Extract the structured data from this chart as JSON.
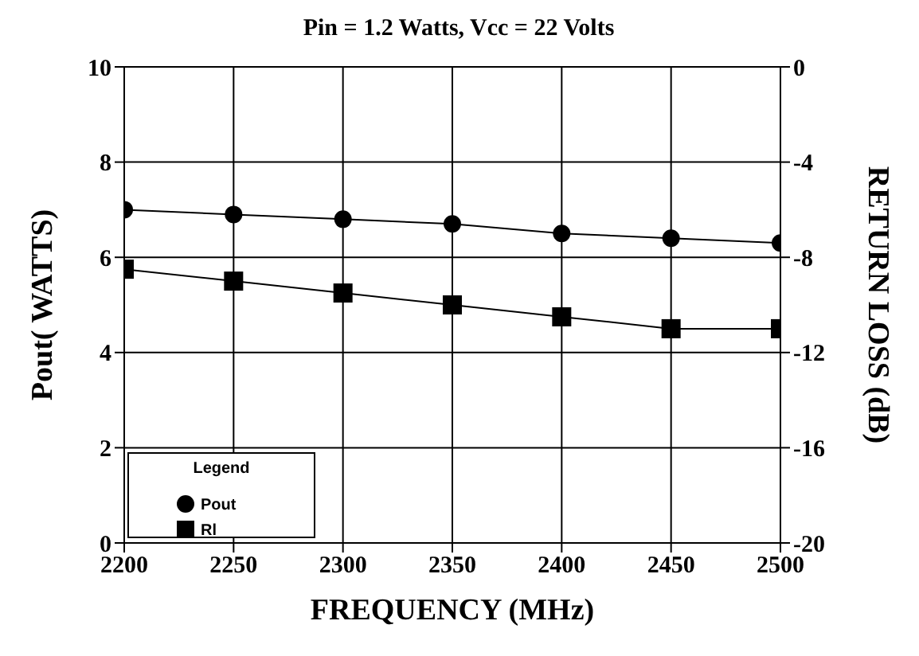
{
  "chart_data": {
    "type": "line",
    "title": "Pin = 1.2 Watts, Vcc = 22 Volts",
    "xlabel": "FREQUENCY (MHz)",
    "ylabel": "Pout( WATTS)",
    "y2label": "RETURN LOSS (dB)",
    "legend_title": "Legend",
    "x": [
      2200,
      2250,
      2300,
      2350,
      2400,
      2450,
      2500
    ],
    "series": [
      {
        "name": "Pout",
        "color": "#000000",
        "marker": "circle",
        "values": [
          7.0,
          6.9,
          6.8,
          6.7,
          6.5,
          6.4,
          6.3
        ]
      },
      {
        "name": "Rl",
        "color": "#000000",
        "marker": "square",
        "axis": "y2",
        "values": [
          -8.5,
          -9,
          -9.5,
          -10,
          -10.5,
          -11,
          -11
        ]
      }
    ],
    "xlim": [
      2200,
      2500
    ],
    "xticks": [
      2200,
      2250,
      2300,
      2350,
      2400,
      2450,
      2500
    ],
    "ylim": [
      0,
      10
    ],
    "yticks": [
      0,
      2,
      4,
      6,
      8,
      10
    ],
    "y2lim": [
      -20,
      0
    ],
    "y2ticks": [
      -20,
      -16,
      -12,
      -8,
      -4,
      0
    ],
    "grid": true,
    "legend": "bottom left"
  }
}
